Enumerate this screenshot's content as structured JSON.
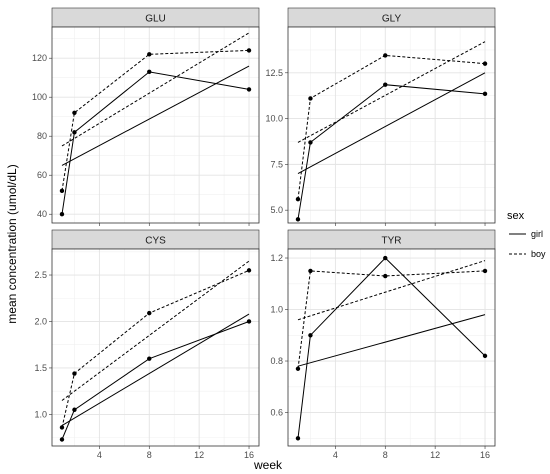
{
  "chart_data": {
    "type": "line",
    "xlabel": "week",
    "ylabel": "mean concentration (umol/dL)",
    "legend": {
      "title": "sex",
      "position": "right",
      "entries": [
        {
          "label": "girl",
          "linetype": "solid"
        },
        {
          "label": "boy",
          "linetype": "dashed"
        }
      ]
    },
    "grid": true,
    "x_ticks": [
      4,
      8,
      12,
      16
    ],
    "xlim": [
      0.2,
      16.8
    ],
    "panels": [
      {
        "title": "GLU",
        "ylim": [
          35.5,
          136
        ],
        "y_ticks": [
          "40",
          "60",
          "80",
          "100",
          "120"
        ],
        "y_tick_values": [
          40,
          60,
          80,
          100,
          120
        ],
        "series": [
          {
            "name": "girl",
            "points": [
              [
                1,
                40
              ],
              [
                2,
                82
              ],
              [
                8,
                113
              ],
              [
                16,
                104
              ]
            ],
            "trend": [
              [
                1,
                65
              ],
              [
                16,
                116
              ]
            ]
          },
          {
            "name": "boy",
            "points": [
              [
                1,
                52
              ],
              [
                2,
                92
              ],
              [
                8,
                122
              ],
              [
                16,
                124
              ]
            ],
            "trend": [
              [
                1,
                75
              ],
              [
                16,
                133
              ]
            ]
          }
        ]
      },
      {
        "title": "GLY",
        "ylim": [
          4.3,
          15.0
        ],
        "y_ticks": [
          "5.0",
          "7.5",
          "10.0",
          "12.5"
        ],
        "y_tick_values": [
          5.0,
          7.5,
          10.0,
          12.5
        ],
        "series": [
          {
            "name": "girl",
            "points": [
              [
                1,
                4.5
              ],
              [
                2,
                8.7
              ],
              [
                8,
                11.85
              ],
              [
                16,
                11.35
              ]
            ],
            "trend": [
              [
                1,
                7.0
              ],
              [
                16,
                12.5
              ]
            ]
          },
          {
            "name": "boy",
            "points": [
              [
                1,
                5.6
              ],
              [
                2,
                11.1
              ],
              [
                8,
                13.45
              ],
              [
                16,
                13.0
              ]
            ],
            "trend": [
              [
                1,
                8.7
              ],
              [
                16,
                14.2
              ]
            ]
          }
        ]
      },
      {
        "title": "CYS",
        "ylim": [
          0.66,
          2.78
        ],
        "y_ticks": [
          "1.0",
          "1.5",
          "2.0",
          "2.5"
        ],
        "y_tick_values": [
          1.0,
          1.5,
          2.0,
          2.5
        ],
        "series": [
          {
            "name": "girl",
            "points": [
              [
                1,
                0.73
              ],
              [
                2,
                1.05
              ],
              [
                8,
                1.6
              ],
              [
                16,
                2.0
              ]
            ],
            "trend": [
              [
                1,
                0.88
              ],
              [
                16,
                2.08
              ]
            ]
          },
          {
            "name": "boy",
            "points": [
              [
                1,
                0.86
              ],
              [
                2,
                1.44
              ],
              [
                8,
                2.09
              ],
              [
                16,
                2.55
              ]
            ],
            "trend": [
              [
                1,
                1.15
              ],
              [
                16,
                2.65
              ]
            ]
          }
        ]
      },
      {
        "title": "TYR",
        "ylim": [
          0.47,
          1.235
        ],
        "y_ticks": [
          "0.6",
          "0.8",
          "1.0",
          "1.2"
        ],
        "y_tick_values": [
          0.6,
          0.8,
          1.0,
          1.2
        ],
        "series": [
          {
            "name": "girl",
            "points": [
              [
                1,
                0.5
              ],
              [
                2,
                0.9
              ],
              [
                8,
                1.2
              ],
              [
                16,
                0.82
              ]
            ],
            "trend": [
              [
                1,
                0.78
              ],
              [
                16,
                0.98
              ]
            ]
          },
          {
            "name": "boy",
            "points": [
              [
                1,
                0.77
              ],
              [
                2,
                1.15
              ],
              [
                8,
                1.13
              ],
              [
                16,
                1.15
              ]
            ],
            "trend": [
              [
                1,
                0.96
              ],
              [
                16,
                1.19
              ]
            ]
          }
        ]
      }
    ]
  }
}
